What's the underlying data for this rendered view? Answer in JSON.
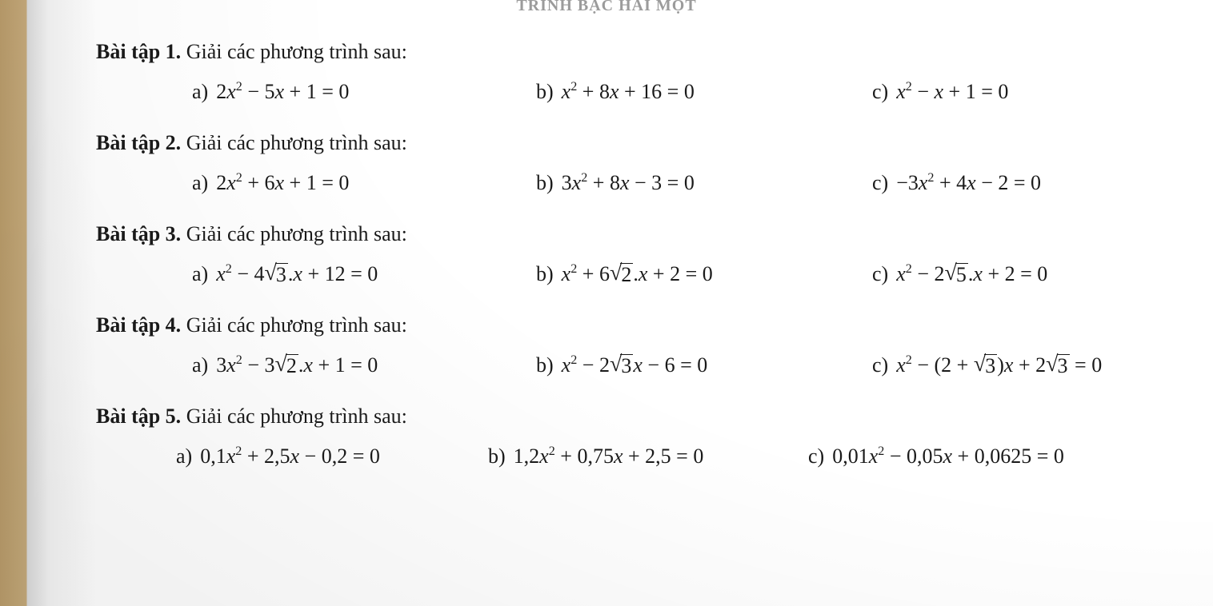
{
  "top_cut": "TRINH BẠC HAI MỘT",
  "sections": [
    {
      "title_bold": "Bài tập 1.",
      "title_rest": " Giải các phương trình sau:",
      "a_label": "a)",
      "b_label": "b)",
      "c_label": "c)"
    },
    {
      "title_bold": "Bài tập 2.",
      "title_rest": " Giải các phương trình sau:",
      "a_label": "a)",
      "b_label": "b)",
      "c_label": "c)"
    },
    {
      "title_bold": "Bài tập 3.",
      "title_rest": " Giải các phương trình sau:",
      "a_label": "a)",
      "b_label": "b)",
      "c_label": "c)"
    },
    {
      "title_bold": "Bài tập 4.",
      "title_rest": " Giải các phương trình sau:",
      "a_label": "a)",
      "b_label": "b)",
      "c_label": "c)"
    },
    {
      "title_bold": "Bài tập 5.",
      "title_rest": " Giải các phương trình sau:",
      "a_label": "a)",
      "b_label": "b)",
      "c_label": "c)"
    }
  ],
  "eq": {
    "s1a": {
      "pre": "2",
      "mid": " − 5",
      "post": " + 1 = 0"
    },
    "s1b": {
      "pre": "",
      "mid": " + 8",
      "post": " + 16 = 0"
    },
    "s1c": {
      "pre": "",
      "mid": " − ",
      "post": " + 1 = 0"
    },
    "s2a": {
      "pre": "2",
      "mid": " + 6",
      "post": " + 1 = 0"
    },
    "s2b": {
      "pre": "3",
      "mid": " + 8",
      "post": " − 3 = 0"
    },
    "s2c": {
      "pre": "−3",
      "mid": " + 4",
      "post": " − 2 = 0"
    },
    "s3a": {
      "coef": "4",
      "rad": "3",
      "tail": " + 12 = 0"
    },
    "s3b": {
      "coef": "6",
      "rad": "2",
      "tail": " + 2 = 0",
      "sign": " + "
    },
    "s3c": {
      "coef": "2",
      "rad": "5",
      "tail": " + 2 = 0"
    },
    "s4a": {
      "pre": "3",
      "coef": "3",
      "rad": "2",
      "tail": " + 1 = 0"
    },
    "s4b": {
      "coef": "2",
      "rad": "3",
      "tail": " − 6 = 0"
    },
    "s4c": {
      "paren_open": "(2 + ",
      "rad1": "3",
      "paren_close": ")",
      "coef2": "2",
      "rad2": "3",
      "tail": " = 0"
    },
    "s5a": "0,1x² + 2,5x − 0,2 = 0",
    "s5b": "1,2x² + 0,75x + 2,5 = 0",
    "s5c": "0,01x² − 0,05x + 0,0625 = 0",
    "s5a_p": {
      "a": "0,1",
      "b": " + 2,5",
      "c": " − 0,2 = 0"
    },
    "s5b_p": {
      "a": "1,2",
      "b": " + 0,75",
      "c": " + 2,5 = 0"
    },
    "s5c_p": {
      "a": "0,01",
      "b": " − 0,05",
      "c": " + 0,0625 = 0"
    }
  },
  "glyph": {
    "x": "x",
    "sq": "2",
    "dot": ".",
    "minus": " − ",
    "plus": " + "
  }
}
